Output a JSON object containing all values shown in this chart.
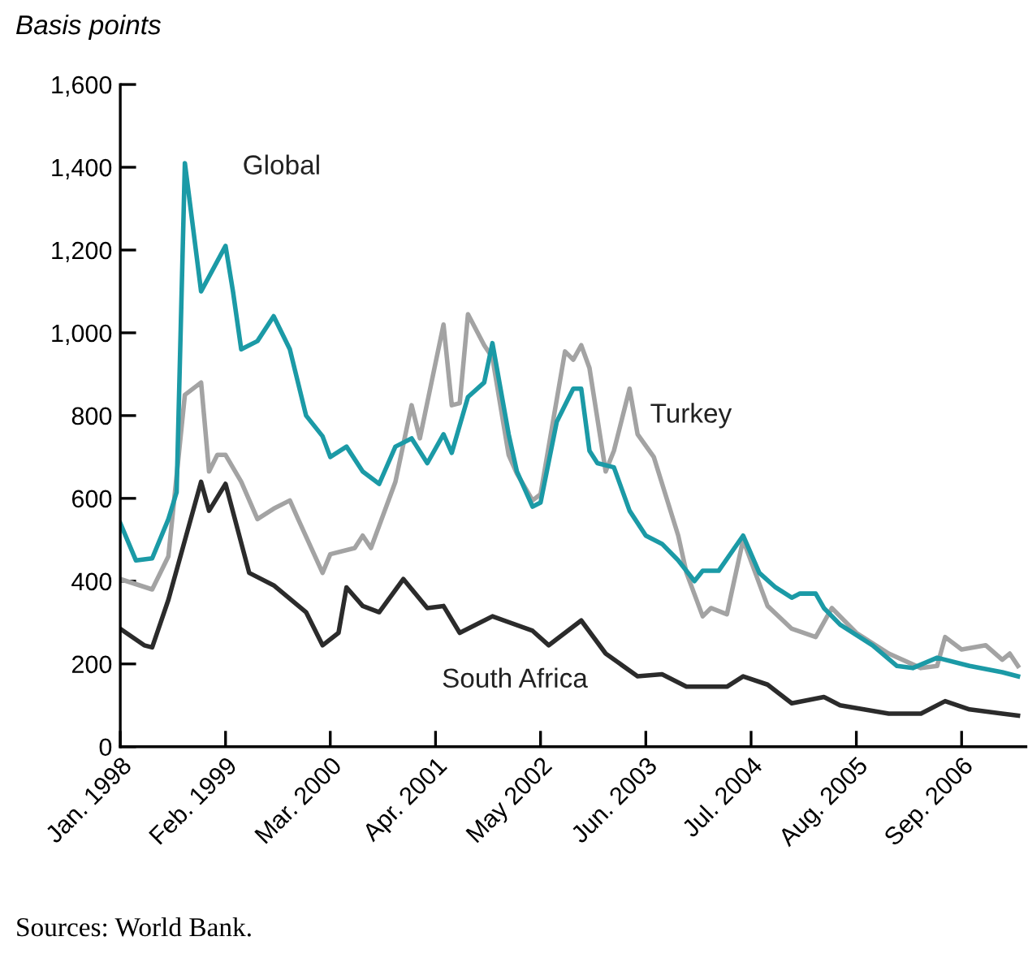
{
  "chart_data": {
    "type": "line",
    "ylabel": "Basis points",
    "legend": false,
    "grid": false,
    "marker": "none",
    "line_style": "solid",
    "xlim": [
      "1998-01",
      "2007-05"
    ],
    "ylim": [
      0,
      1600
    ],
    "xticks": [
      {
        "value": "1998-01",
        "label": "Jan. 1998"
      },
      {
        "value": "1999-02",
        "label": "Feb. 1999"
      },
      {
        "value": "2000-03",
        "label": "Mar. 2000"
      },
      {
        "value": "2001-04",
        "label": "Apr. 2001"
      },
      {
        "value": "2002-05",
        "label": "May 2002"
      },
      {
        "value": "2003-06",
        "label": "Jun. 2003"
      },
      {
        "value": "2004-07",
        "label": "Jul. 2004"
      },
      {
        "value": "2005-08",
        "label": "Aug. 2005"
      },
      {
        "value": "2006-09",
        "label": "Sep. 2006"
      }
    ],
    "yticks": [
      0,
      200,
      400,
      600,
      800,
      {
        "value": 1000,
        "label": "1,000"
      },
      {
        "value": 1200,
        "label": "1,200"
      },
      {
        "value": 1400,
        "label": "1,400"
      },
      {
        "value": 1600,
        "label": "1,600"
      }
    ],
    "series": [
      {
        "name": "Turkey",
        "color": "#a3a3a3",
        "x": [
          "1998-01",
          "1998-05",
          "1998-07",
          "1998-09",
          "1998-11",
          "1998-12",
          "1999-01",
          "1999-02",
          "1999-04",
          "1999-06",
          "1999-08",
          "1999-10",
          "1999-11",
          "2000-02",
          "2000-03",
          "2000-06",
          "2000-07",
          "2000-08",
          "2000-11",
          "2001-01",
          "2001-02",
          "2001-05",
          "2001-06",
          "2001-07",
          "2001-08",
          "2001-10",
          "2001-11",
          "2002-01",
          "2002-02",
          "2002-04",
          "2002-05",
          "2002-08",
          "2002-09",
          "2002-10",
          "2002-11",
          "2003-01",
          "2003-02",
          "2003-04",
          "2003-05",
          "2003-07",
          "2003-10",
          "2003-11",
          "2004-01",
          "2004-02",
          "2004-04",
          "2004-06",
          "2004-09",
          "2004-12",
          "2005-03",
          "2005-05",
          "2005-08",
          "2005-12",
          "2006-04",
          "2006-06",
          "2006-07",
          "2006-09",
          "2006-12",
          "2007-02",
          "2007-03",
          "2007-04"
        ],
        "values": [
          405,
          380,
          460,
          850,
          880,
          665,
          705,
          705,
          640,
          550,
          575,
          595,
          550,
          420,
          465,
          480,
          510,
          480,
          640,
          825,
          745,
          1020,
          825,
          830,
          1045,
          970,
          940,
          705,
          660,
          595,
          610,
          955,
          935,
          970,
          915,
          665,
          715,
          865,
          755,
          700,
          510,
          420,
          315,
          335,
          320,
          500,
          340,
          285,
          265,
          335,
          275,
          225,
          190,
          195,
          265,
          235,
          245,
          210,
          225,
          195
        ]
      },
      {
        "name": "Global",
        "color": "#1b9aa6",
        "x": [
          "1998-01",
          "1998-03",
          "1998-05",
          "1998-07",
          "1998-08",
          "1998-09",
          "1998-11",
          "1999-02",
          "1999-03",
          "1999-04",
          "1999-06",
          "1999-08",
          "1999-10",
          "1999-12",
          "2000-02",
          "2000-03",
          "2000-05",
          "2000-07",
          "2000-09",
          "2000-11",
          "2001-01",
          "2001-03",
          "2001-05",
          "2001-06",
          "2001-08",
          "2001-10",
          "2001-11",
          "2002-01",
          "2002-02",
          "2002-04",
          "2002-05",
          "2002-07",
          "2002-09",
          "2002-10",
          "2002-11",
          "2002-12",
          "2003-02",
          "2003-04",
          "2003-06",
          "2003-08",
          "2003-10",
          "2003-12",
          "2004-01",
          "2004-03",
          "2004-06",
          "2004-08",
          "2004-10",
          "2004-12",
          "2005-01",
          "2005-03",
          "2005-04",
          "2005-06",
          "2005-10",
          "2006-01",
          "2006-03",
          "2006-06",
          "2006-10",
          "2007-02",
          "2007-04"
        ],
        "values": [
          540,
          450,
          455,
          550,
          615,
          1410,
          1100,
          1210,
          1100,
          960,
          980,
          1040,
          960,
          800,
          750,
          700,
          725,
          665,
          635,
          725,
          745,
          685,
          755,
          710,
          845,
          880,
          975,
          755,
          665,
          580,
          590,
          785,
          865,
          865,
          715,
          685,
          675,
          570,
          510,
          490,
          450,
          400,
          425,
          425,
          510,
          420,
          385,
          360,
          370,
          370,
          335,
          295,
          245,
          195,
          190,
          215,
          195,
          180,
          170
        ]
      },
      {
        "name": "South Africa",
        "color": "#2b2b2b",
        "x": [
          "1998-01",
          "1998-04",
          "1998-05",
          "1998-07",
          "1998-11",
          "1998-12",
          "1999-02",
          "1999-05",
          "1999-08",
          "1999-12",
          "2000-02",
          "2000-04",
          "2000-05",
          "2000-07",
          "2000-09",
          "2000-12",
          "2001-03",
          "2001-05",
          "2001-07",
          "2001-11",
          "2002-04",
          "2002-06",
          "2002-10",
          "2003-01",
          "2003-05",
          "2003-08",
          "2003-11",
          "2004-04",
          "2004-06",
          "2004-09",
          "2004-12",
          "2005-04",
          "2005-06",
          "2005-12",
          "2006-04",
          "2006-07",
          "2006-10",
          "2007-02",
          "2007-04"
        ],
        "values": [
          285,
          245,
          240,
          355,
          640,
          570,
          635,
          420,
          390,
          325,
          245,
          275,
          385,
          340,
          325,
          405,
          335,
          340,
          275,
          315,
          280,
          245,
          305,
          225,
          170,
          175,
          145,
          145,
          170,
          150,
          105,
          120,
          100,
          80,
          80,
          110,
          90,
          80,
          75
        ]
      }
    ],
    "annotations": [
      "Sources: World Bank."
    ]
  }
}
